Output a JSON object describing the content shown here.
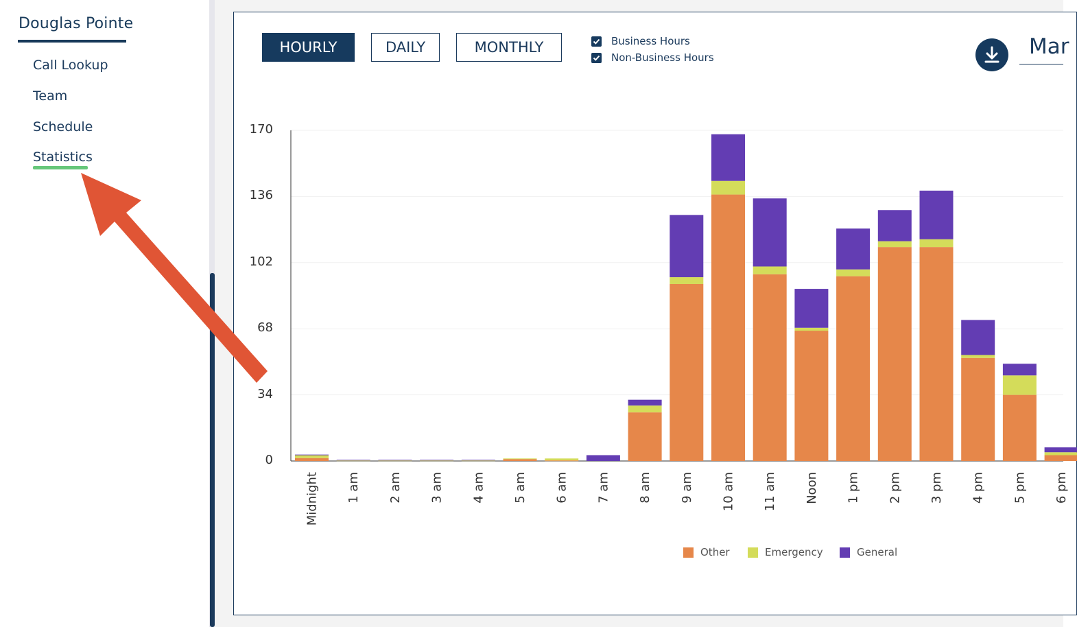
{
  "sidebar": {
    "brand": "Douglas Pointe",
    "items": [
      {
        "label": "Call Lookup"
      },
      {
        "label": "Team"
      },
      {
        "label": "Schedule"
      },
      {
        "label": "Statistics",
        "active": true
      }
    ]
  },
  "toolbar": {
    "tabs": [
      {
        "label": "HOURLY",
        "active": true
      },
      {
        "label": "DAILY",
        "active": false
      },
      {
        "label": "MONTHLY",
        "active": false
      }
    ],
    "filters": [
      {
        "label": "Business Hours",
        "checked": true
      },
      {
        "label": "Non-Business Hours",
        "checked": true
      }
    ],
    "download_icon": "download-icon",
    "month_label": "Mar"
  },
  "colors": {
    "navy": "#163a5e",
    "other": "#e6874a",
    "emergency": "#d4dc5a",
    "general": "#633db3",
    "annotation_arrow": "#e05535",
    "active_underline": "#66c77a"
  },
  "chart_data": {
    "type": "bar",
    "stacked": true,
    "ylim": [
      0,
      170
    ],
    "yticks": [
      0,
      34,
      68,
      102,
      136,
      170
    ],
    "categories": [
      "Midnight",
      "1 am",
      "2 am",
      "3 am",
      "4 am",
      "5 am",
      "6 am",
      "7 am",
      "8 am",
      "9 am",
      "10 am",
      "11 am",
      "Noon",
      "1 pm",
      "2 pm",
      "3 pm",
      "4 pm",
      "5 pm",
      "6 pm"
    ],
    "series": [
      {
        "name": "Other",
        "values": [
          1.5,
          0,
          0,
          0,
          0,
          1,
          0.3,
          0,
          25,
          91,
          137,
          96,
          67,
          95,
          110,
          110,
          53,
          34,
          3
        ]
      },
      {
        "name": "Emergency",
        "values": [
          1.5,
          0.3,
          0.3,
          0.3,
          0.3,
          0.3,
          1,
          0,
          3.5,
          3.5,
          7,
          4,
          1.5,
          3.5,
          3,
          4,
          1.5,
          10,
          1.5
        ]
      },
      {
        "name": "General",
        "values": [
          0.3,
          0.3,
          0.3,
          0.3,
          0.3,
          0,
          0,
          3,
          3,
          32,
          24,
          35,
          20,
          21,
          16,
          25,
          18,
          6,
          2.5
        ]
      }
    ]
  },
  "annotation": {
    "arrow_points_to": "Statistics"
  }
}
